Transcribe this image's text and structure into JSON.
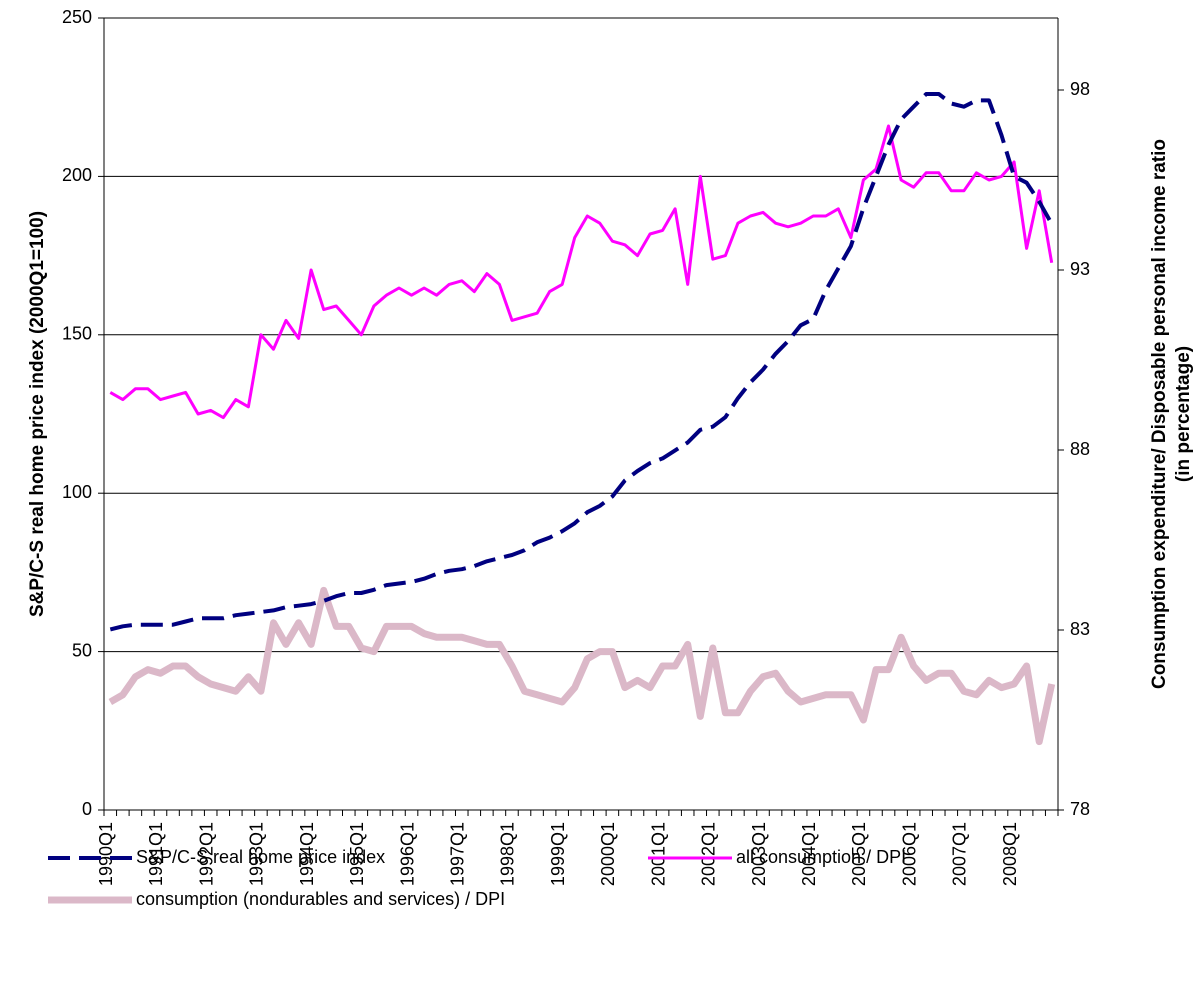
{
  "chart_data": {
    "type": "line",
    "ylabel": "S&P/C-S real home price index (2000Q1=100)",
    "y2label": [
      "Consumption expenditure/ Disposable personal income ratio",
      "(in percentage)"
    ],
    "categories": [
      "1990Q1",
      null,
      null,
      null,
      "1991Q1",
      null,
      null,
      null,
      "1992Q1",
      null,
      null,
      null,
      "1993Q1",
      null,
      null,
      null,
      "1994Q1",
      null,
      null,
      null,
      "1995Q1",
      null,
      null,
      null,
      "1996Q1",
      null,
      null,
      null,
      "1997Q1",
      null,
      null,
      null,
      "1998Q1",
      null,
      null,
      null,
      "1999Q1",
      null,
      null,
      null,
      "2000Q1",
      null,
      null,
      null,
      "2001Q1",
      null,
      null,
      null,
      "2002Q1",
      null,
      null,
      null,
      "2003Q1",
      null,
      null,
      null,
      "2004Q1",
      null,
      null,
      null,
      "2005Q1",
      null,
      null,
      null,
      "2006Q1",
      null,
      null,
      null,
      "2007Q1",
      null,
      null,
      null,
      "2008Q1",
      null,
      null,
      null
    ],
    "ylim": [
      0,
      250
    ],
    "yticks": [
      0,
      50,
      100,
      150,
      200,
      250
    ],
    "y2lim": [
      78,
      100
    ],
    "y2ticks": [
      78,
      83,
      88,
      93,
      98
    ],
    "grid": true,
    "legend": "bottom",
    "series": [
      {
        "name": "S&P/C-S real home price index",
        "color": "#000080",
        "style": "dashed",
        "axis": "y",
        "values": [
          57,
          58,
          58.5,
          58.5,
          58.5,
          58.5,
          59.5,
          60.5,
          60.5,
          60.5,
          61.5,
          62,
          62.5,
          63,
          64,
          64.5,
          65,
          66,
          67.5,
          68.5,
          68.5,
          69.5,
          71,
          71.5,
          72,
          73,
          74.5,
          75.5,
          76,
          77,
          78.5,
          79.5,
          80.5,
          82,
          84.5,
          86,
          88,
          90.5,
          94,
          96,
          99,
          104,
          107,
          109.5,
          111,
          113.5,
          116,
          120,
          121,
          124,
          130,
          135,
          139,
          144,
          148,
          153,
          155,
          164,
          171,
          178,
          190,
          200,
          210,
          218,
          222,
          226,
          226,
          223,
          222,
          224,
          224,
          213,
          200,
          198,
          192,
          185
        ]
      },
      {
        "name": "all consumption / DPI",
        "color": "#ff00ff",
        "style": "solid",
        "axis": "y2",
        "values": [
          89.6,
          89.4,
          89.7,
          89.7,
          89.4,
          89.5,
          89.6,
          89.0,
          89.1,
          88.9,
          89.4,
          89.2,
          91.2,
          90.8,
          91.6,
          91.1,
          93.0,
          91.9,
          92.0,
          91.6,
          91.2,
          92.0,
          92.3,
          92.5,
          92.3,
          92.5,
          92.3,
          92.6,
          92.7,
          92.4,
          92.9,
          92.6,
          91.6,
          91.7,
          91.8,
          92.4,
          92.6,
          93.9,
          94.5,
          94.3,
          93.8,
          93.7,
          93.4,
          94.0,
          94.1,
          94.7,
          92.6,
          95.6,
          93.3,
          93.4,
          94.3,
          94.5,
          94.6,
          94.3,
          94.2,
          94.3,
          94.5,
          94.5,
          94.7,
          93.9,
          95.5,
          95.8,
          97.0,
          95.5,
          95.3,
          95.7,
          95.7,
          95.2,
          95.2,
          95.7,
          95.5,
          95.6,
          96.0,
          93.6,
          95.2,
          93.2
        ]
      },
      {
        "name": "consumption (nondurables and services) / DPI",
        "color": "#dbb8c8",
        "style": "thick",
        "axis": "y2",
        "values": [
          81.0,
          81.2,
          81.7,
          81.9,
          81.8,
          82.0,
          82.0,
          81.7,
          81.5,
          81.4,
          81.3,
          81.7,
          81.3,
          83.2,
          82.6,
          83.2,
          82.6,
          84.1,
          83.1,
          83.1,
          82.5,
          82.4,
          83.1,
          83.1,
          83.1,
          82.9,
          82.8,
          82.8,
          82.8,
          82.7,
          82.6,
          82.6,
          82.0,
          81.3,
          81.2,
          81.1,
          81.0,
          81.4,
          82.2,
          82.4,
          82.4,
          81.4,
          81.6,
          81.4,
          82.0,
          82.0,
          82.6,
          80.6,
          82.5,
          80.7,
          80.7,
          81.3,
          81.7,
          81.8,
          81.3,
          81.0,
          81.1,
          81.2,
          81.2,
          81.2,
          80.5,
          81.9,
          81.9,
          82.8,
          82.0,
          81.6,
          81.8,
          81.8,
          81.3,
          81.2,
          81.6,
          81.4,
          81.5,
          82.0,
          79.9,
          81.5
        ]
      }
    ]
  }
}
